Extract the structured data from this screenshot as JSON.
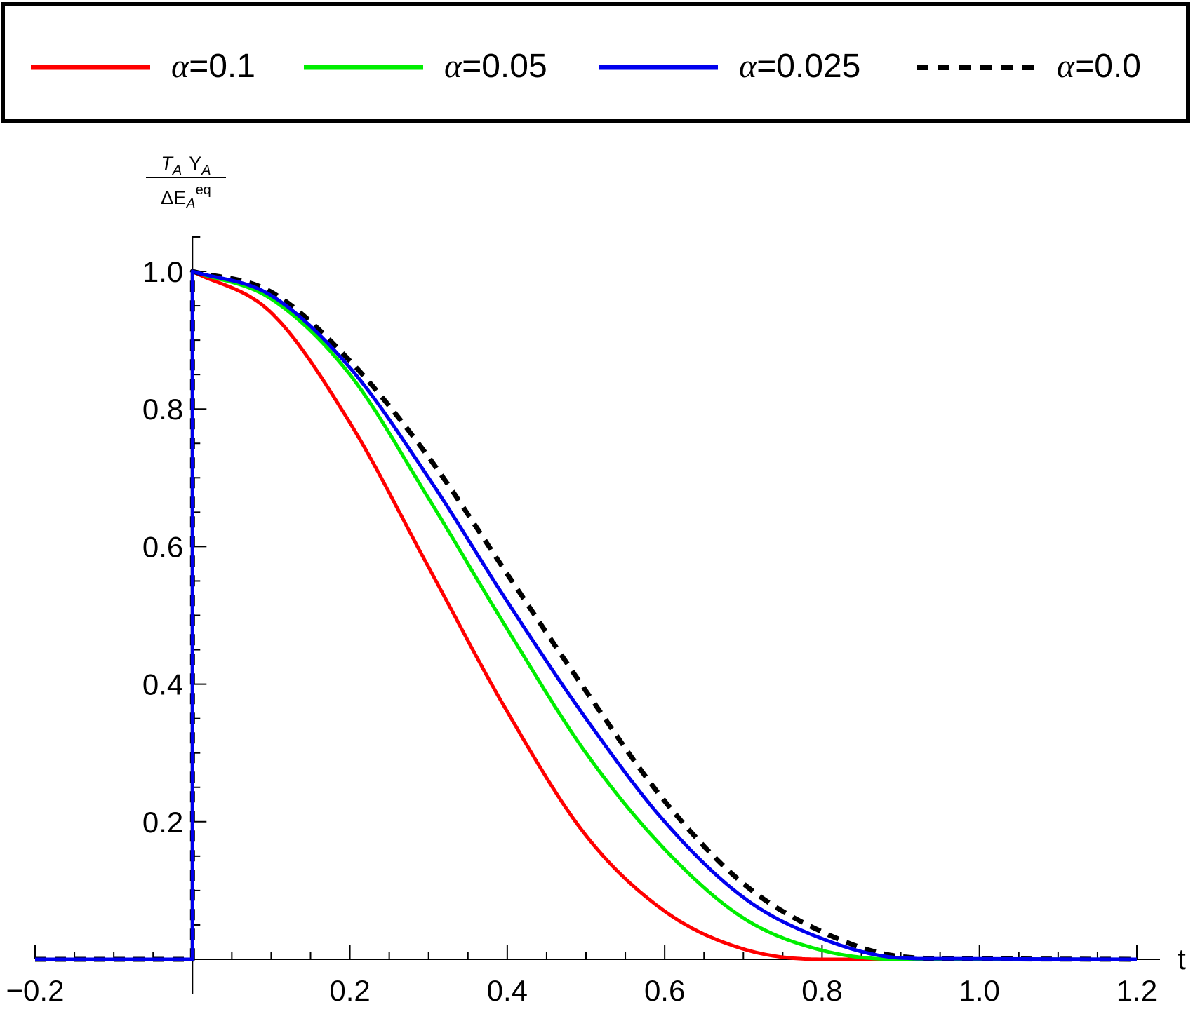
{
  "chart_data": {
    "type": "line",
    "title": "",
    "xlabel": "t",
    "ylabel": {
      "numerator": "T_A Υ_A",
      "numerator_parts": [
        "T",
        "A",
        "Υ",
        "A"
      ],
      "denominator": "ΔE_A^eq",
      "denominator_parts": [
        "ΔE",
        "A",
        "eq"
      ]
    },
    "xlim": [
      -0.2,
      1.2
    ],
    "ylim": [
      0,
      1.05
    ],
    "grid": false,
    "legend_position": "top",
    "x_ticks": [
      "−0.2",
      "0.2",
      "0.4",
      "0.6",
      "0.8",
      "1.0",
      "1.2"
    ],
    "x_tick_values": [
      -0.2,
      0.2,
      0.4,
      0.6,
      0.8,
      1.0,
      1.2
    ],
    "y_ticks": [
      "0.2",
      "0.4",
      "0.6",
      "0.8",
      "1.0"
    ],
    "y_tick_values": [
      0.2,
      0.4,
      0.6,
      0.8,
      1.0
    ],
    "x": [
      0.0,
      0.1,
      0.2,
      0.3,
      0.4,
      0.5,
      0.6,
      0.7,
      0.8,
      0.9,
      1.0
    ],
    "series": [
      {
        "name": "α=0.1",
        "symbol": "α",
        "value_text": "=0.1",
        "color": "#ff0000",
        "dash": "none",
        "support_end": 0.8,
        "values": [
          1.0,
          0.94,
          0.78,
          0.57,
          0.36,
          0.18,
          0.07,
          0.015,
          0.0,
          0.0,
          0.0
        ]
      },
      {
        "name": "α=0.05",
        "symbol": "α",
        "value_text": "=0.05",
        "color": "#00ee00",
        "dash": "none",
        "support_end": 0.88,
        "values": [
          1.0,
          0.96,
          0.85,
          0.67,
          0.48,
          0.3,
          0.16,
          0.06,
          0.013,
          0.0,
          0.0
        ]
      },
      {
        "name": "α=0.025",
        "symbol": "α",
        "value_text": "=0.025",
        "color": "#0000ee",
        "dash": "none",
        "support_end": 0.92,
        "values": [
          1.0,
          0.965,
          0.86,
          0.7,
          0.52,
          0.35,
          0.2,
          0.09,
          0.03,
          0.002,
          0.0
        ]
      },
      {
        "name": "α=0.0",
        "symbol": "α",
        "value_text": "=0.0",
        "color": "#000000",
        "dash": "dashed",
        "support_end": 0.95,
        "values": [
          1.0,
          0.97,
          0.87,
          0.73,
          0.56,
          0.39,
          0.23,
          0.11,
          0.04,
          0.004,
          0.0
        ]
      }
    ]
  }
}
